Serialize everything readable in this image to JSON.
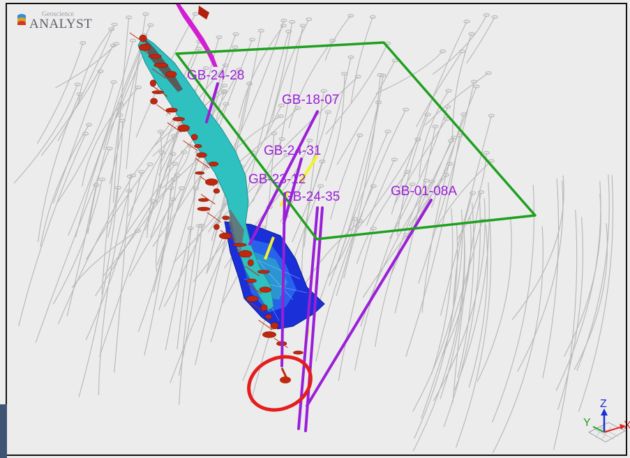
{
  "app": {
    "logo_top": "Geoscience",
    "logo_bottom": "ANALYST"
  },
  "drillholes": {
    "labels": [
      "GB-24-28",
      "GB-18-07",
      "GB-24-31",
      "GB-23-12",
      "GB-24-35",
      "GB-01-08A"
    ]
  },
  "axes": {
    "z": "Z",
    "y": "Y",
    "x": "X"
  },
  "colors": {
    "background": "#ececec",
    "drillhole_highlight": "#9a1fd6",
    "outline_plane": "#1fa01f",
    "annotation_circle": "#e51d1d",
    "background_drillholes": "#b9b9b9",
    "ore_body": "#1a2fd8",
    "vein_surface": "#2fc0c0",
    "intercepts": "#c0280e"
  }
}
